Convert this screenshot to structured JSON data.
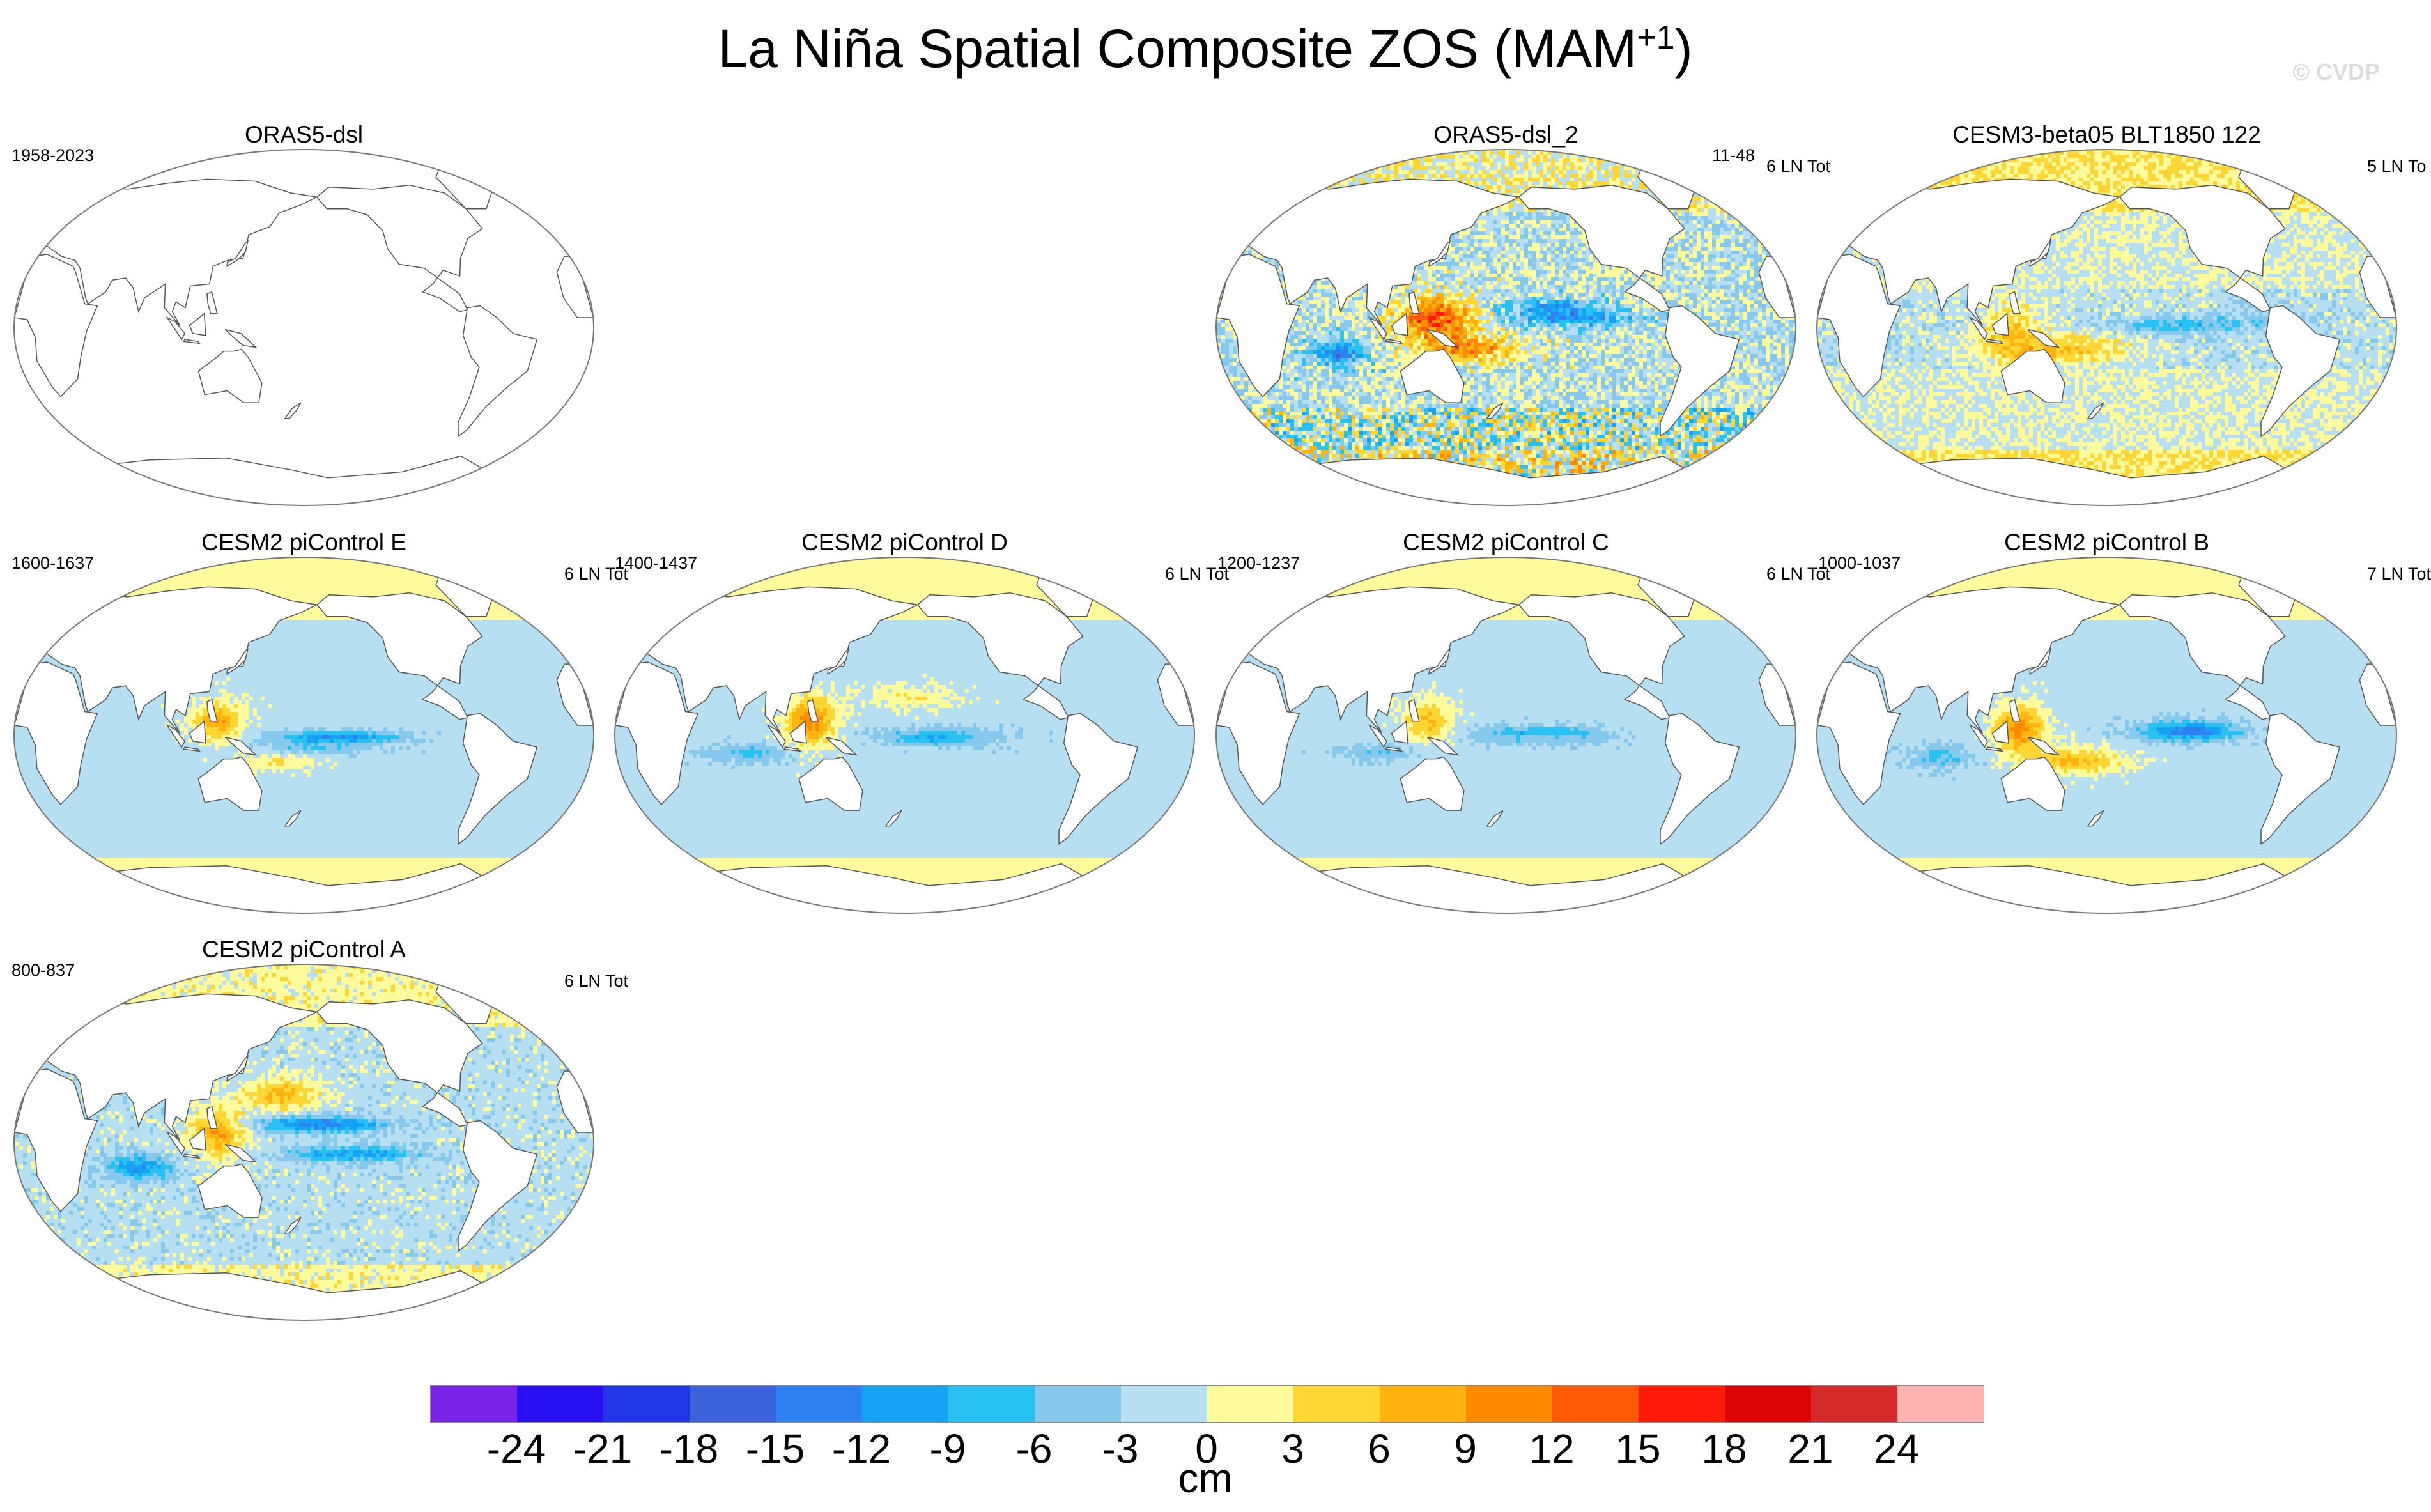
{
  "title": "La Niña Spatial Composite ZOS (MAM",
  "title_sup": "+1",
  "title_close": ")",
  "watermark": "© CVDP",
  "colors": {
    "land": "#ffffff",
    "coast": "#555555",
    "palette": [
      "#7b22e8",
      "#2810f2",
      "#2236e6",
      "#3a63dc",
      "#2f80f0",
      "#17a3f5",
      "#29c1f2",
      "#86c9ec",
      "#b6dff2",
      "#fffb9c",
      "#ffd633",
      "#ffb30f",
      "#ff8b05",
      "#ff5a08",
      "#ff1a0a",
      "#dc0505",
      "#d42a2a",
      "#ffb3b3"
    ]
  },
  "chart_data": {
    "type": "heatmap",
    "variable": "ZOS",
    "unit": "cm",
    "levels": [
      -24,
      -21,
      -18,
      -15,
      -12,
      -9,
      -6,
      -3,
      0,
      3,
      6,
      9,
      12,
      15,
      18,
      21,
      24
    ],
    "panels": [
      {
        "title": "ORAS5-dsl",
        "left": "1958-2023",
        "right": "",
        "empty": true,
        "pattern": null
      },
      {
        "title": "ORAS5-dsl_2",
        "left": "",
        "right": "6 LN Tot",
        "empty": false,
        "pattern": "obs"
      },
      {
        "title": "CESM3-beta05 BLT1850 122",
        "left": "11-48",
        "right": "5 LN To",
        "empty": false,
        "pattern": "cesm3"
      },
      {
        "title": "CESM2 piControl E",
        "left": "1600-1637",
        "right": "6 LN Tot",
        "empty": false,
        "pattern": "e"
      },
      {
        "title": "CESM2 piControl D",
        "left": "1400-1437",
        "right": "6 LN Tot",
        "empty": false,
        "pattern": "d"
      },
      {
        "title": "CESM2 piControl C",
        "left": "1200-1237",
        "right": "6 LN Tot",
        "empty": false,
        "pattern": "c"
      },
      {
        "title": "CESM2 piControl B",
        "left": "1000-1037",
        "right": "7 LN Tot",
        "empty": false,
        "pattern": "b"
      },
      {
        "title": "CESM2 piControl A",
        "left": "800-837",
        "right": "6 LN Tot",
        "empty": false,
        "pattern": "a"
      }
    ],
    "colorbar_label": "cm"
  }
}
